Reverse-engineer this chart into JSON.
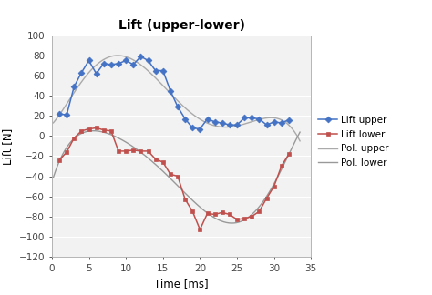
{
  "title": "Lift (upper-lower)",
  "xlabel": "Time [ms]",
  "ylabel": "Lift [N]",
  "xlim": [
    0,
    35
  ],
  "ylim": [
    -120,
    100
  ],
  "yticks": [
    -120,
    -100,
    -80,
    -60,
    -40,
    -20,
    0,
    20,
    40,
    60,
    80,
    100
  ],
  "xticks": [
    0,
    5,
    10,
    15,
    20,
    25,
    30,
    35
  ],
  "upper_x": [
    1,
    2,
    3,
    4,
    5,
    6,
    7,
    8,
    9,
    10,
    11,
    12,
    13,
    14,
    15,
    16,
    17,
    18,
    19,
    20,
    21,
    22,
    23,
    24,
    25,
    26,
    27,
    28,
    29,
    30,
    31,
    32
  ],
  "upper_y": [
    22,
    21,
    49,
    63,
    75,
    62,
    72,
    71,
    72,
    75,
    71,
    79,
    75,
    65,
    65,
    45,
    29,
    17,
    8,
    7,
    17,
    14,
    13,
    11,
    11,
    18,
    18,
    17,
    11,
    14,
    13,
    16
  ],
  "lower_x": [
    1,
    2,
    3,
    4,
    5,
    6,
    7,
    8,
    9,
    10,
    11,
    12,
    13,
    14,
    15,
    16,
    17,
    18,
    19,
    20,
    21,
    22,
    23,
    24,
    25,
    26,
    27,
    28,
    29,
    30,
    31,
    32
  ],
  "lower_y": [
    -24,
    -16,
    -2,
    5,
    7,
    8,
    6,
    5,
    -15,
    -15,
    -14,
    -15,
    -15,
    -23,
    -26,
    -38,
    -40,
    -63,
    -75,
    -93,
    -77,
    -78,
    -76,
    -78,
    -83,
    -82,
    -80,
    -75,
    -62,
    -50,
    -30,
    -18
  ],
  "upper_color": "#4472C4",
  "lower_color": "#C0504D",
  "pol_upper_color": "#AAAAAA",
  "pol_lower_color": "#999999",
  "background_color": "#FFFFFF",
  "plot_bg_color": "#F2F2F2",
  "grid_color": "#FFFFFF",
  "legend_labels": [
    "Lift upper",
    "Lift lower",
    "Pol. upper",
    "Pol. lower"
  ]
}
